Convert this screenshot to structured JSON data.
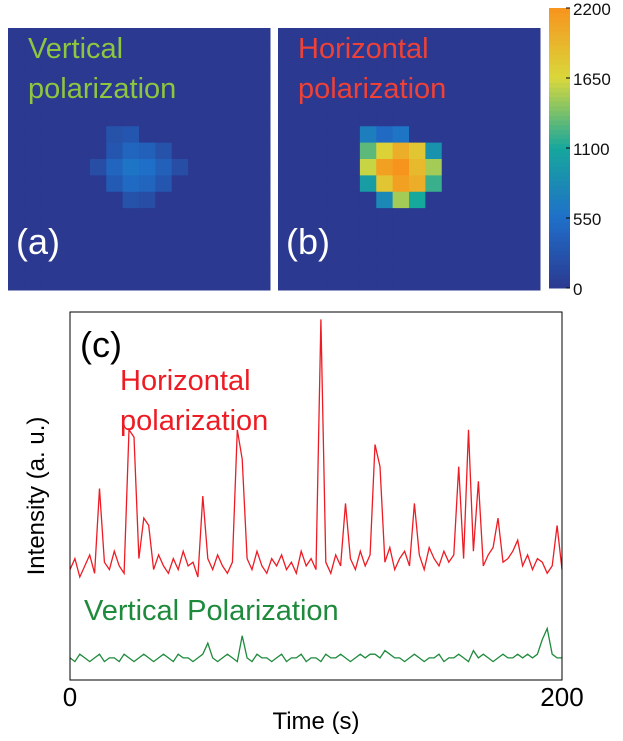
{
  "chart_data": [
    {
      "type": "heatmap",
      "title_lines": [
        "Vertical",
        "polarization"
      ],
      "title_color": "#8dc63f",
      "panel_label": "(a)",
      "clim": [
        0,
        2200
      ],
      "colorscale": [
        "#2b3990",
        "#1f6fc9",
        "#16a79d",
        "#d9d83b",
        "#f7941d"
      ],
      "z": [
        [
          0,
          0,
          0,
          0,
          0,
          0,
          0,
          0,
          0,
          0,
          0,
          0,
          0,
          0,
          0,
          0
        ],
        [
          0,
          0,
          0,
          0,
          0,
          0,
          0,
          0,
          0,
          0,
          0,
          0,
          0,
          0,
          0,
          0
        ],
        [
          0,
          0,
          0,
          0,
          0,
          0,
          0,
          0,
          0,
          0,
          0,
          0,
          0,
          0,
          0,
          0
        ],
        [
          0,
          0,
          0,
          0,
          0,
          0,
          0,
          0,
          0,
          0,
          0,
          0,
          0,
          0,
          0,
          0
        ],
        [
          0,
          0,
          0,
          0,
          0,
          0,
          0,
          0,
          0,
          0,
          0,
          0,
          0,
          0,
          0,
          0
        ],
        [
          0,
          0,
          0,
          0,
          0,
          0,
          0,
          0,
          0,
          0,
          0,
          0,
          0,
          0,
          0,
          0
        ],
        [
          0,
          0,
          0,
          0,
          0,
          0,
          250,
          300,
          0,
          0,
          0,
          0,
          0,
          0,
          0,
          0
        ],
        [
          0,
          0,
          0,
          0,
          0,
          0,
          300,
          450,
          400,
          250,
          0,
          0,
          0,
          0,
          0,
          0
        ],
        [
          0,
          0,
          0,
          0,
          0,
          200,
          450,
          600,
          550,
          400,
          200,
          0,
          0,
          0,
          0,
          0
        ],
        [
          0,
          0,
          0,
          0,
          0,
          0,
          350,
          500,
          450,
          300,
          0,
          0,
          0,
          0,
          0,
          0
        ],
        [
          0,
          0,
          0,
          0,
          0,
          0,
          0,
          250,
          200,
          0,
          0,
          0,
          0,
          0,
          0,
          0
        ],
        [
          0,
          0,
          0,
          0,
          0,
          0,
          0,
          0,
          0,
          0,
          0,
          0,
          0,
          0,
          0,
          0
        ],
        [
          0,
          0,
          0,
          0,
          0,
          0,
          0,
          0,
          0,
          0,
          0,
          0,
          0,
          0,
          0,
          0
        ],
        [
          0,
          0,
          0,
          0,
          0,
          0,
          0,
          0,
          0,
          0,
          0,
          0,
          0,
          0,
          0,
          0
        ],
        [
          0,
          0,
          0,
          0,
          0,
          0,
          0,
          0,
          0,
          0,
          0,
          0,
          0,
          0,
          0,
          0
        ],
        [
          0,
          0,
          0,
          0,
          0,
          0,
          0,
          0,
          0,
          0,
          0,
          0,
          0,
          0,
          0,
          0
        ]
      ]
    },
    {
      "type": "heatmap",
      "title_lines": [
        "Horizontal",
        "polarization"
      ],
      "title_color": "#ef4136",
      "panel_label": "(b)",
      "clim": [
        0,
        2200
      ],
      "colorscale": [
        "#2b3990",
        "#1f6fc9",
        "#16a79d",
        "#d9d83b",
        "#f7941d"
      ],
      "colorbar_ticks": [
        0,
        550,
        1100,
        1650,
        2200
      ],
      "z": [
        [
          0,
          0,
          0,
          0,
          0,
          0,
          0,
          0,
          0,
          0,
          0,
          0,
          0,
          0,
          0,
          0
        ],
        [
          0,
          0,
          0,
          0,
          0,
          0,
          0,
          0,
          0,
          0,
          0,
          0,
          0,
          0,
          0,
          0
        ],
        [
          0,
          0,
          0,
          0,
          0,
          0,
          0,
          0,
          0,
          0,
          0,
          0,
          0,
          0,
          0,
          0
        ],
        [
          0,
          0,
          0,
          0,
          0,
          0,
          0,
          0,
          0,
          0,
          0,
          0,
          0,
          0,
          0,
          0
        ],
        [
          0,
          0,
          0,
          0,
          0,
          0,
          0,
          0,
          0,
          0,
          0,
          0,
          0,
          0,
          0,
          0
        ],
        [
          0,
          0,
          0,
          0,
          0,
          0,
          0,
          0,
          0,
          0,
          0,
          0,
          0,
          0,
          0,
          0
        ],
        [
          0,
          0,
          0,
          0,
          0,
          700,
          500,
          600,
          0,
          0,
          0,
          0,
          0,
          0,
          0,
          0
        ],
        [
          0,
          0,
          0,
          0,
          0,
          1300,
          1700,
          2000,
          1800,
          900,
          0,
          0,
          0,
          0,
          0,
          0
        ],
        [
          0,
          0,
          0,
          0,
          0,
          1600,
          2100,
          2200,
          1900,
          1500,
          0,
          0,
          0,
          0,
          0,
          0
        ],
        [
          0,
          0,
          0,
          0,
          0,
          1000,
          1800,
          2100,
          2000,
          1200,
          0,
          0,
          0,
          0,
          0,
          0
        ],
        [
          0,
          0,
          0,
          0,
          0,
          0,
          800,
          1500,
          1100,
          0,
          0,
          0,
          0,
          0,
          0,
          0
        ],
        [
          0,
          0,
          0,
          0,
          0,
          0,
          0,
          0,
          0,
          0,
          0,
          0,
          0,
          0,
          0,
          0
        ],
        [
          0,
          0,
          0,
          0,
          0,
          0,
          0,
          0,
          0,
          0,
          0,
          0,
          0,
          0,
          0,
          0
        ],
        [
          0,
          0,
          0,
          0,
          0,
          0,
          0,
          0,
          0,
          0,
          0,
          0,
          0,
          0,
          0,
          0
        ],
        [
          0,
          0,
          0,
          0,
          0,
          0,
          0,
          0,
          0,
          0,
          0,
          0,
          0,
          0,
          0,
          0
        ],
        [
          0,
          0,
          0,
          0,
          0,
          0,
          0,
          0,
          0,
          0,
          0,
          0,
          0,
          0,
          0,
          0
        ]
      ]
    },
    {
      "type": "line",
      "panel_label": "(c)",
      "xlabel": "Time (s)",
      "ylabel": "Intensity (a. u.)",
      "xlim": [
        0,
        200
      ],
      "xticks": [
        0,
        200
      ],
      "ylim": [
        0,
        100
      ],
      "x": [
        0,
        2,
        4,
        6,
        8,
        10,
        12,
        14,
        16,
        18,
        20,
        22,
        24,
        26,
        28,
        30,
        32,
        34,
        36,
        38,
        40,
        42,
        44,
        46,
        48,
        50,
        52,
        54,
        56,
        58,
        60,
        62,
        64,
        66,
        68,
        70,
        72,
        74,
        76,
        78,
        80,
        82,
        84,
        86,
        88,
        90,
        92,
        94,
        96,
        98,
        100,
        102,
        104,
        106,
        108,
        110,
        112,
        114,
        116,
        118,
        120,
        122,
        124,
        126,
        128,
        130,
        132,
        134,
        136,
        138,
        140,
        142,
        144,
        146,
        148,
        150,
        152,
        154,
        156,
        158,
        160,
        162,
        164,
        166,
        168,
        170,
        172,
        174,
        176,
        178,
        180,
        182,
        184,
        186,
        188,
        190,
        192,
        194,
        196,
        198,
        200
      ],
      "series": [
        {
          "name_lines": [
            "Horizontal",
            "polarization"
          ],
          "color": "#ed1c24",
          "values": [
            30,
            33,
            28,
            31,
            34,
            29,
            52,
            32,
            30,
            35,
            31,
            29,
            68,
            66,
            33,
            44,
            42,
            30,
            34,
            31,
            29,
            33,
            30,
            35,
            31,
            32,
            28,
            50,
            33,
            30,
            34,
            31,
            29,
            32,
            68,
            60,
            33,
            30,
            35,
            31,
            29,
            33,
            31,
            34,
            30,
            32,
            29,
            35,
            31,
            33,
            30,
            98,
            32,
            29,
            34,
            31,
            48,
            33,
            30,
            35,
            31,
            34,
            64,
            58,
            32,
            36,
            30,
            33,
            35,
            31,
            48,
            34,
            30,
            36,
            33,
            31,
            35,
            32,
            34,
            58,
            33,
            68,
            35,
            54,
            31,
            34,
            36,
            44,
            32,
            33,
            35,
            38,
            31,
            34,
            30,
            33,
            32,
            29,
            31,
            42,
            30
          ]
        },
        {
          "name": "Vertical Polarization",
          "color": "#1e8a3c",
          "values": [
            6,
            5,
            7,
            6,
            5,
            6,
            7,
            5,
            6,
            6,
            5,
            7,
            6,
            5,
            6,
            7,
            6,
            5,
            6,
            7,
            6,
            5,
            7,
            6,
            6,
            5,
            6,
            7,
            10,
            6,
            5,
            6,
            7,
            6,
            5,
            12,
            6,
            5,
            7,
            6,
            6,
            5,
            6,
            7,
            5,
            6,
            6,
            7,
            5,
            6,
            6,
            5,
            7,
            6,
            6,
            7,
            6,
            5,
            6,
            7,
            6,
            7,
            7,
            6,
            8,
            7,
            6,
            6,
            5,
            6,
            7,
            6,
            5,
            6,
            6,
            7,
            5,
            6,
            6,
            7,
            6,
            5,
            8,
            6,
            7,
            6,
            5,
            6,
            7,
            6,
            6,
            7,
            6,
            7,
            6,
            7,
            11,
            14,
            7,
            6,
            6
          ]
        }
      ]
    }
  ]
}
